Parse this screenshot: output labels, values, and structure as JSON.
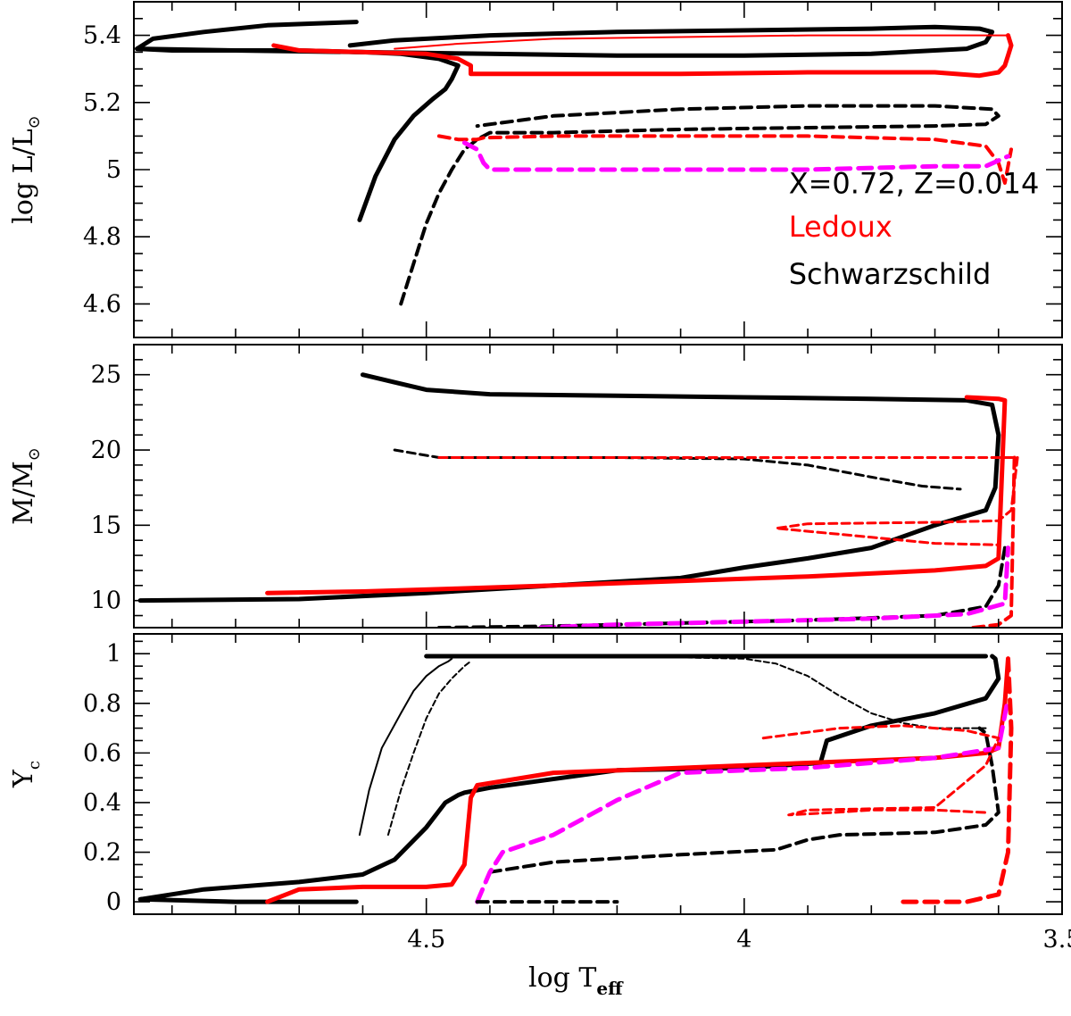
{
  "chart_data": {
    "type": "line",
    "shared_x": {
      "label": "log T",
      "label_sub": "eff",
      "range": [
        4.96,
        3.5
      ],
      "ticks": [
        4.5,
        4,
        3.5
      ],
      "tick_labels": [
        "4.5",
        "4",
        "3.5"
      ],
      "minor_step": 0.1
    },
    "colors": {
      "black": "#000000",
      "red": "#ff0000",
      "magenta": "#ff00ff"
    },
    "panels": [
      {
        "id": "top",
        "ylabel": "log L/L",
        "ylabel_sub": "⊙",
        "ylim": [
          4.5,
          5.5
        ],
        "yticks": [
          4.6,
          4.8,
          5,
          5.2,
          5.4
        ],
        "ytick_labels": [
          "4.6",
          "4.8",
          "5",
          "5.2",
          "5.4"
        ],
        "minor_step": 0.05,
        "annotations": [
          {
            "text": "X=0.72,  Z=0.014",
            "color": "#000000",
            "at": [
              3.93,
              4.93
            ]
          },
          {
            "text": "Ledoux",
            "color": "#ff0000",
            "at": [
              3.93,
              4.8
            ]
          },
          {
            "text": "Schwarzschild",
            "color": "#000000",
            "at": [
              3.93,
              4.66
            ]
          }
        ],
        "series": [
          {
            "name": "Schwarzschild 25 Msun",
            "color": "#000000",
            "dash": "solid",
            "width": 5,
            "x": [
              4.605,
              4.58,
              4.55,
              4.52,
              4.49,
              4.47,
              4.46,
              4.45,
              4.48,
              4.54,
              4.6,
              4.7,
              4.8,
              4.9,
              4.955,
              4.93,
              4.85,
              4.75,
              4.61
            ],
            "y": [
              4.85,
              4.98,
              5.09,
              5.16,
              5.21,
              5.24,
              5.27,
              5.31,
              5.33,
              5.345,
              5.35,
              5.355,
              5.355,
              5.355,
              5.36,
              5.39,
              5.41,
              5.43,
              5.44
            ]
          },
          {
            "name": "Schwarzschild 25 Msun loop",
            "color": "#000000",
            "dash": "solid",
            "width": 5,
            "x": [
              4.955,
              4.8,
              4.6,
              4.4,
              4.2,
              4.0,
              3.8,
              3.65,
              3.62,
              3.61,
              3.63,
              3.7,
              3.8,
              4.0,
              4.2,
              4.4,
              4.55,
              4.62
            ],
            "y": [
              5.36,
              5.355,
              5.35,
              5.345,
              5.34,
              5.34,
              5.345,
              5.36,
              5.38,
              5.41,
              5.42,
              5.425,
              5.42,
              5.415,
              5.41,
              5.4,
              5.385,
              5.37
            ]
          },
          {
            "name": "Ledoux 25 Msun",
            "color": "#ff0000",
            "dash": "solid",
            "width": 5,
            "x": [
              4.74,
              4.7,
              4.6,
              4.5,
              4.45,
              4.43,
              4.43,
              4.3,
              4.1,
              3.9,
              3.7,
              3.63,
              3.6,
              3.59,
              3.585,
              3.58,
              3.585
            ],
            "y": [
              5.37,
              5.355,
              5.35,
              5.345,
              5.33,
              5.31,
              5.285,
              5.285,
              5.285,
              5.29,
              5.29,
              5.28,
              5.29,
              5.31,
              5.34,
              5.37,
              5.4
            ]
          },
          {
            "name": "Ledoux 25 Msun loop",
            "color": "#ff0000",
            "dash": "solid",
            "width": 2,
            "x": [
              3.585,
              3.7,
              3.9,
              4.1,
              4.3,
              4.45,
              4.55
            ],
            "y": [
              5.4,
              5.4,
              5.4,
              5.395,
              5.39,
              5.375,
              5.36
            ]
          },
          {
            "name": "Schwarzschild 20 Msun",
            "color": "#000000",
            "dash": "dashed",
            "width": 4,
            "x": [
              4.54,
              4.52,
              4.5,
              4.48,
              4.46,
              4.44,
              4.42,
              4.41,
              4.4,
              4.3,
              4.1,
              3.9,
              3.7,
              3.62,
              3.6,
              3.61,
              3.7,
              3.9,
              4.1,
              4.3,
              4.42
            ],
            "y": [
              4.6,
              4.72,
              4.84,
              4.93,
              5.0,
              5.06,
              5.09,
              5.1,
              5.11,
              5.11,
              5.12,
              5.125,
              5.13,
              5.135,
              5.16,
              5.18,
              5.19,
              5.19,
              5.18,
              5.16,
              5.13
            ]
          },
          {
            "name": "Ledoux 20 Msun",
            "color": "#ff0000",
            "dash": "dashed",
            "width": 4,
            "x": [
              4.48,
              4.45,
              4.42,
              4.41,
              4.3,
              4.1,
              3.9,
              3.7,
              3.62,
              3.6,
              3.59,
              3.58
            ],
            "y": [
              5.1,
              5.09,
              5.09,
              5.095,
              5.1,
              5.1,
              5.1,
              5.09,
              5.07,
              5.02,
              4.96,
              5.06
            ]
          },
          {
            "name": "Ledoux 20 Msun mixed",
            "color": "#ff00ff",
            "dash": "dashed",
            "width": 5,
            "x": [
              4.44,
              4.42,
              4.41,
              4.4,
              4.3,
              4.1,
              3.9,
              3.7,
              3.62,
              3.585
            ],
            "y": [
              5.08,
              5.06,
              5.02,
              5.0,
              5.0,
              5.0,
              5.0,
              5.01,
              5.01,
              5.04
            ]
          }
        ]
      },
      {
        "id": "middle",
        "ylabel": "M/M",
        "ylabel_sub": "⊙",
        "ylim": [
          8.2,
          27
        ],
        "yticks": [
          10,
          15,
          20,
          25
        ],
        "ytick_labels": [
          "10",
          "15",
          "20",
          "25"
        ],
        "minor_step": 1,
        "annotations": [],
        "series": [
          {
            "name": "Schwarzschild 25 Msun",
            "color": "#000000",
            "dash": "solid",
            "width": 5,
            "x": [
              4.6,
              4.55,
              4.5,
              4.4,
              4.2,
              4.0,
              3.8,
              3.65,
              3.61,
              3.6,
              3.605,
              3.62,
              3.7,
              3.8,
              3.9,
              4.0,
              4.1,
              4.3,
              4.5,
              4.7,
              4.95
            ],
            "y": [
              25.0,
              24.5,
              24.0,
              23.7,
              23.6,
              23.5,
              23.4,
              23.3,
              23.0,
              21.0,
              17.5,
              16.0,
              15.0,
              13.5,
              12.8,
              12.2,
              11.5,
              11.0,
              10.5,
              10.1,
              10.0
            ]
          },
          {
            "name": "Ledoux 25 Msun",
            "color": "#ff0000",
            "dash": "solid",
            "width": 5,
            "x": [
              4.75,
              4.6,
              4.45,
              4.3,
              4.1,
              3.9,
              3.7,
              3.62,
              3.6,
              3.59,
              3.6,
              3.65
            ],
            "y": [
              10.5,
              10.6,
              10.8,
              11.0,
              11.3,
              11.6,
              12.0,
              12.3,
              12.8,
              23.3,
              23.4,
              23.5
            ]
          },
          {
            "name": "Schwarzschild 20 Msun",
            "color": "#000000",
            "dash": "dashed",
            "width": 3,
            "x": [
              4.55,
              4.48,
              4.4,
              4.2,
              4.0,
              3.9,
              3.8,
              3.72,
              3.66
            ],
            "y": [
              20.0,
              19.5,
              19.5,
              19.5,
              19.4,
              19.0,
              18.2,
              17.6,
              17.4
            ]
          },
          {
            "name": "Ledoux 20 Msun",
            "color": "#ff0000",
            "dash": "dashed",
            "width": 3,
            "x": [
              4.48,
              4.4,
              4.2,
              4.0,
              3.8,
              3.6,
              3.57,
              3.58,
              3.6,
              3.7,
              3.9,
              3.95,
              3.8,
              3.7,
              3.6
            ],
            "y": [
              19.5,
              19.5,
              19.5,
              19.5,
              19.5,
              19.5,
              19.5,
              16.0,
              15.3,
              15.2,
              15.1,
              14.8,
              14.2,
              13.8,
              13.7
            ]
          },
          {
            "name": "Schwarzschild 20 Msun lower",
            "color": "#000000",
            "dash": "dashed",
            "width": 4,
            "x": [
              4.48,
              4.3,
              4.1,
              3.9,
              3.7,
              3.62,
              3.6,
              3.59
            ],
            "y": [
              8.2,
              8.3,
              8.5,
              8.7,
              9.0,
              9.6,
              11.0,
              13.5
            ]
          },
          {
            "name": "Ledoux 20 Msun mixed",
            "color": "#ff00ff",
            "dash": "dashed",
            "width": 5,
            "x": [
              4.32,
              4.2,
              4.0,
              3.8,
              3.65,
              3.59,
              3.585
            ],
            "y": [
              8.2,
              8.4,
              8.6,
              8.8,
              9.1,
              9.8,
              13.5
            ]
          },
          {
            "name": "Ledoux 20 Msun lower",
            "color": "#ff0000",
            "dash": "dashed",
            "width": 4,
            "x": [
              3.64,
              3.6,
              3.58,
              3.575
            ],
            "y": [
              8.2,
              8.4,
              9.0,
              19.5
            ]
          }
        ]
      },
      {
        "id": "bottom",
        "ylabel": "Y",
        "ylabel_sub": "c",
        "ylim": [
          -0.05,
          1.08
        ],
        "yticks": [
          0,
          0.2,
          0.4,
          0.6,
          0.8,
          1
        ],
        "ytick_labels": [
          "0",
          "0.2",
          "0.4",
          "0.6",
          "0.8",
          "1"
        ],
        "minor_step": 0.05,
        "annotations": [],
        "series": [
          {
            "name": "Schwarzschild 25 Msun ZAMS branch",
            "color": "#000000",
            "dash": "solid",
            "width": 2,
            "x": [
              4.605,
              4.59,
              4.57,
              4.54,
              4.52,
              4.5,
              4.48,
              4.465,
              4.46
            ],
            "y": [
              0.27,
              0.45,
              0.62,
              0.76,
              0.85,
              0.91,
              0.95,
              0.97,
              0.98
            ]
          },
          {
            "name": "Schwarzschild 20 Msun ZAMS branch",
            "color": "#000000",
            "dash": "dashed",
            "width": 2,
            "x": [
              4.56,
              4.54,
              4.52,
              4.5,
              4.48,
              4.46,
              4.44,
              4.43
            ],
            "y": [
              0.27,
              0.45,
              0.6,
              0.74,
              0.84,
              0.9,
              0.95,
              0.97
            ]
          },
          {
            "name": "Schwarzschild 25 Msun",
            "color": "#000000",
            "dash": "solid",
            "width": 5,
            "x": [
              4.61,
              4.8,
              4.95,
              4.85,
              4.7,
              4.6,
              4.55,
              4.5,
              4.47,
              4.45,
              4.44,
              4.4,
              4.2,
              4.0,
              3.88,
              3.87,
              3.8,
              3.7,
              3.62,
              3.6,
              3.605,
              3.61
            ],
            "y": [
              0.0,
              0.0,
              0.01,
              0.05,
              0.08,
              0.11,
              0.17,
              0.3,
              0.4,
              0.43,
              0.44,
              0.46,
              0.53,
              0.54,
              0.56,
              0.65,
              0.71,
              0.76,
              0.82,
              0.9,
              0.98,
              0.99
            ]
          },
          {
            "name": "Schwarzschild 25 Msun top",
            "color": "#000000",
            "dash": "solid",
            "width": 5,
            "x": [
              4.5,
              4.4,
              4.2,
              4.0,
              3.8,
              3.62
            ],
            "y": [
              0.99,
              0.99,
              0.99,
              0.99,
              0.99,
              0.99
            ]
          },
          {
            "name": "Ledoux 25 Msun",
            "color": "#ff0000",
            "dash": "solid",
            "width": 5,
            "x": [
              4.75,
              4.7,
              4.6,
              4.5,
              4.46,
              4.44,
              4.43,
              4.42,
              4.3,
              4.1,
              3.9,
              3.7,
              3.62,
              3.6,
              3.59,
              3.585
            ],
            "y": [
              0.0,
              0.05,
              0.06,
              0.06,
              0.07,
              0.15,
              0.42,
              0.47,
              0.52,
              0.54,
              0.56,
              0.58,
              0.6,
              0.62,
              0.8,
              0.98
            ]
          },
          {
            "name": "Schwarzschild 20 Msun",
            "color": "#000000",
            "dash": "dashed",
            "width": 4,
            "x": [
              4.4,
              4.3,
              4.1,
              3.95,
              3.9,
              3.85,
              3.7,
              3.62,
              3.6,
              3.61,
              3.62,
              3.63
            ],
            "y": [
              0.12,
              0.16,
              0.19,
              0.21,
              0.25,
              0.27,
              0.28,
              0.31,
              0.36,
              0.55,
              0.68,
              0.7
            ]
          },
          {
            "name": "Schwarzschild 20 Msun upper",
            "color": "#000000",
            "dash": "dashed",
            "width": 2,
            "x": [
              4.4,
              4.2,
              4.0,
              3.95,
              3.9,
              3.85,
              3.8,
              3.75,
              3.7,
              3.62
            ],
            "y": [
              0.99,
              0.99,
              0.98,
              0.96,
              0.91,
              0.83,
              0.76,
              0.72,
              0.7,
              0.7
            ]
          },
          {
            "name": "Ledoux 20 Msun mixed",
            "color": "#ff00ff",
            "dash": "dashed",
            "width": 5,
            "x": [
              4.42,
              4.4,
              4.38,
              4.3,
              4.2,
              4.1,
              3.9,
              3.7,
              3.6,
              3.585
            ],
            "y": [
              0.0,
              0.12,
              0.2,
              0.27,
              0.41,
              0.52,
              0.54,
              0.58,
              0.62,
              0.82
            ]
          },
          {
            "name": "Ledoux 20 Msun",
            "color": "#ff0000",
            "dash": "dashed",
            "width": 3,
            "x": [
              3.97,
              3.85,
              3.75,
              3.65,
              3.6,
              3.62,
              3.7,
              3.9,
              3.93,
              3.86,
              3.8,
              3.7,
              3.62
            ],
            "y": [
              0.66,
              0.7,
              0.71,
              0.69,
              0.66,
              0.55,
              0.38,
              0.37,
              0.35,
              0.36,
              0.37,
              0.37,
              0.36
            ]
          },
          {
            "name": "Ledoux 20 Msun lower",
            "color": "#ff0000",
            "dash": "dashed",
            "width": 5,
            "x": [
              3.75,
              3.65,
              3.6,
              3.585,
              3.58,
              3.585
            ],
            "y": [
              0.0,
              0.0,
              0.03,
              0.2,
              0.7,
              0.98
            ]
          },
          {
            "name": "Schwarzschild 20 Msun base",
            "color": "#000000",
            "dash": "dashed",
            "width": 4,
            "x": [
              4.42,
              4.3,
              4.2
            ],
            "y": [
              0.0,
              0.0,
              0.0
            ]
          }
        ]
      }
    ]
  }
}
